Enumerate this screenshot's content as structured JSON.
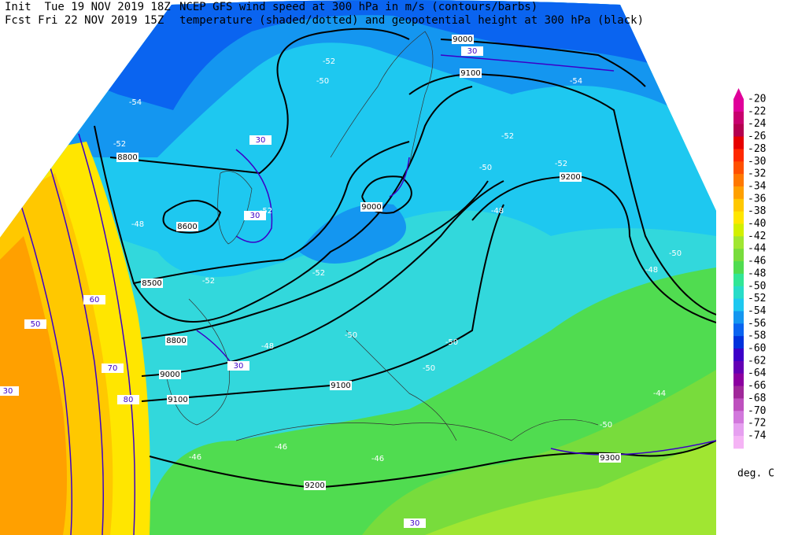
{
  "header": {
    "init": "Init  Tue 19 NOV 2019 18Z",
    "fcst": "Fcst Fri 22 NOV 2019 15Z",
    "title1": "NCEP GFS wind speed at 300 hPa in m/s (contours/barbs)",
    "title2": "temperature (shaded/dotted) and geopotential height at 300 hPa (black)"
  },
  "colorbar": {
    "unit": "deg. C",
    "levels": [
      -20,
      -22,
      -24,
      -26,
      -28,
      -30,
      -32,
      -34,
      -36,
      -38,
      -40,
      -42,
      -44,
      -46,
      -48,
      -50,
      -52,
      -54,
      -56,
      -58,
      -60,
      -62,
      -64,
      -66,
      -68,
      -70,
      -72,
      -74
    ],
    "colors": [
      "#e0009a",
      "#c8006e",
      "#b40050",
      "#e60000",
      "#ff2800",
      "#ff5000",
      "#ff7800",
      "#ffa000",
      "#ffc800",
      "#ffe600",
      "#d2f000",
      "#a0e632",
      "#78dc3c",
      "#50dc50",
      "#32e696",
      "#28dcc8",
      "#1ec8f0",
      "#1496f0",
      "#0a64f0",
      "#0032dc",
      "#3c00c8",
      "#6400b4",
      "#8c00a0",
      "#a0289a",
      "#be50be",
      "#d278dc",
      "#e6a0f0",
      "#f5b4f5"
    ]
  },
  "map_labels": {
    "heights": [
      "9000",
      "9100",
      "9200",
      "8800",
      "9000",
      "8600",
      "8500",
      "8800",
      "9000",
      "9100",
      "9100",
      "9200",
      "9300"
    ],
    "temperatures": [
      "-52",
      "-50",
      "-54",
      "-52",
      "-52",
      "-52",
      "-50",
      "-52",
      "-48",
      "-48",
      "-50",
      "-48",
      "-52",
      "-52",
      "-48",
      "-50",
      "-50",
      "-50",
      "-44",
      "-46",
      "-46",
      "-46",
      "-50",
      "-54"
    ],
    "winds": [
      "30",
      "30",
      "30",
      "30",
      "30",
      "50",
      "60",
      "70",
      "80",
      "30"
    ]
  }
}
